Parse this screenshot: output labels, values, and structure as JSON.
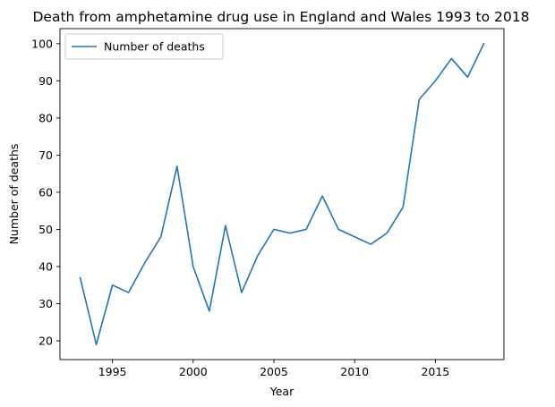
{
  "chart_data": {
    "type": "line",
    "title": "Death from amphetamine drug use in England and Wales 1993 to 2018",
    "xlabel": "Year",
    "ylabel": "Number of deaths",
    "xlim": [
      1991.75,
      2019.25
    ],
    "ylim": [
      14.95,
      104.05
    ],
    "xticks": [
      1995,
      2000,
      2005,
      2010,
      2015
    ],
    "yticks": [
      20,
      30,
      40,
      50,
      60,
      70,
      80,
      90,
      100
    ],
    "grid": false,
    "legend_position": "upper-left",
    "series": [
      {
        "name": "Number of deaths",
        "color": "#1f77b4",
        "x": [
          1993,
          1994,
          1995,
          1996,
          1997,
          1998,
          1999,
          2000,
          2001,
          2002,
          2003,
          2004,
          2005,
          2006,
          2007,
          2008,
          2009,
          2010,
          2011,
          2012,
          2013,
          2014,
          2015,
          2016,
          2017,
          2018
        ],
        "y": [
          37,
          19,
          35,
          33,
          41,
          48,
          67,
          40,
          28,
          51,
          33,
          43,
          50,
          49,
          50,
          59,
          50,
          48,
          46,
          49,
          56,
          85,
          90,
          96,
          91,
          100
        ]
      }
    ]
  }
}
